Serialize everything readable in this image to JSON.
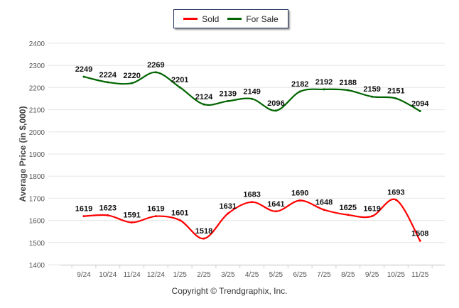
{
  "chart_data": {
    "type": "line",
    "title": "",
    "xlabel": "",
    "ylabel": "Average Price (in $,000)",
    "ylim": [
      1400,
      2400
    ],
    "yticks": [
      1400,
      1500,
      1600,
      1700,
      1800,
      1900,
      2000,
      2100,
      2200,
      2300,
      2400
    ],
    "grid": true,
    "legend_position": "top-center",
    "categories": [
      "9/24",
      "10/24",
      "11/24",
      "12/24",
      "1/25",
      "2/25",
      "3/25",
      "4/25",
      "5/25",
      "6/25",
      "7/25",
      "8/25",
      "9/25",
      "10/25",
      "11/25"
    ],
    "series": [
      {
        "name": "Sold",
        "color": "#ff0000",
        "values": [
          1619,
          1623,
          1591,
          1619,
          1601,
          1518,
          1631,
          1683,
          1641,
          1690,
          1648,
          1625,
          1619,
          1693,
          1508
        ]
      },
      {
        "name": "For Sale",
        "color": "#006400",
        "values": [
          2249,
          2224,
          2220,
          2269,
          2201,
          2124,
          2139,
          2149,
          2096,
          2182,
          2192,
          2188,
          2159,
          2151,
          2094
        ]
      }
    ],
    "footer": "Copyright © Trendgraphix, Inc."
  }
}
